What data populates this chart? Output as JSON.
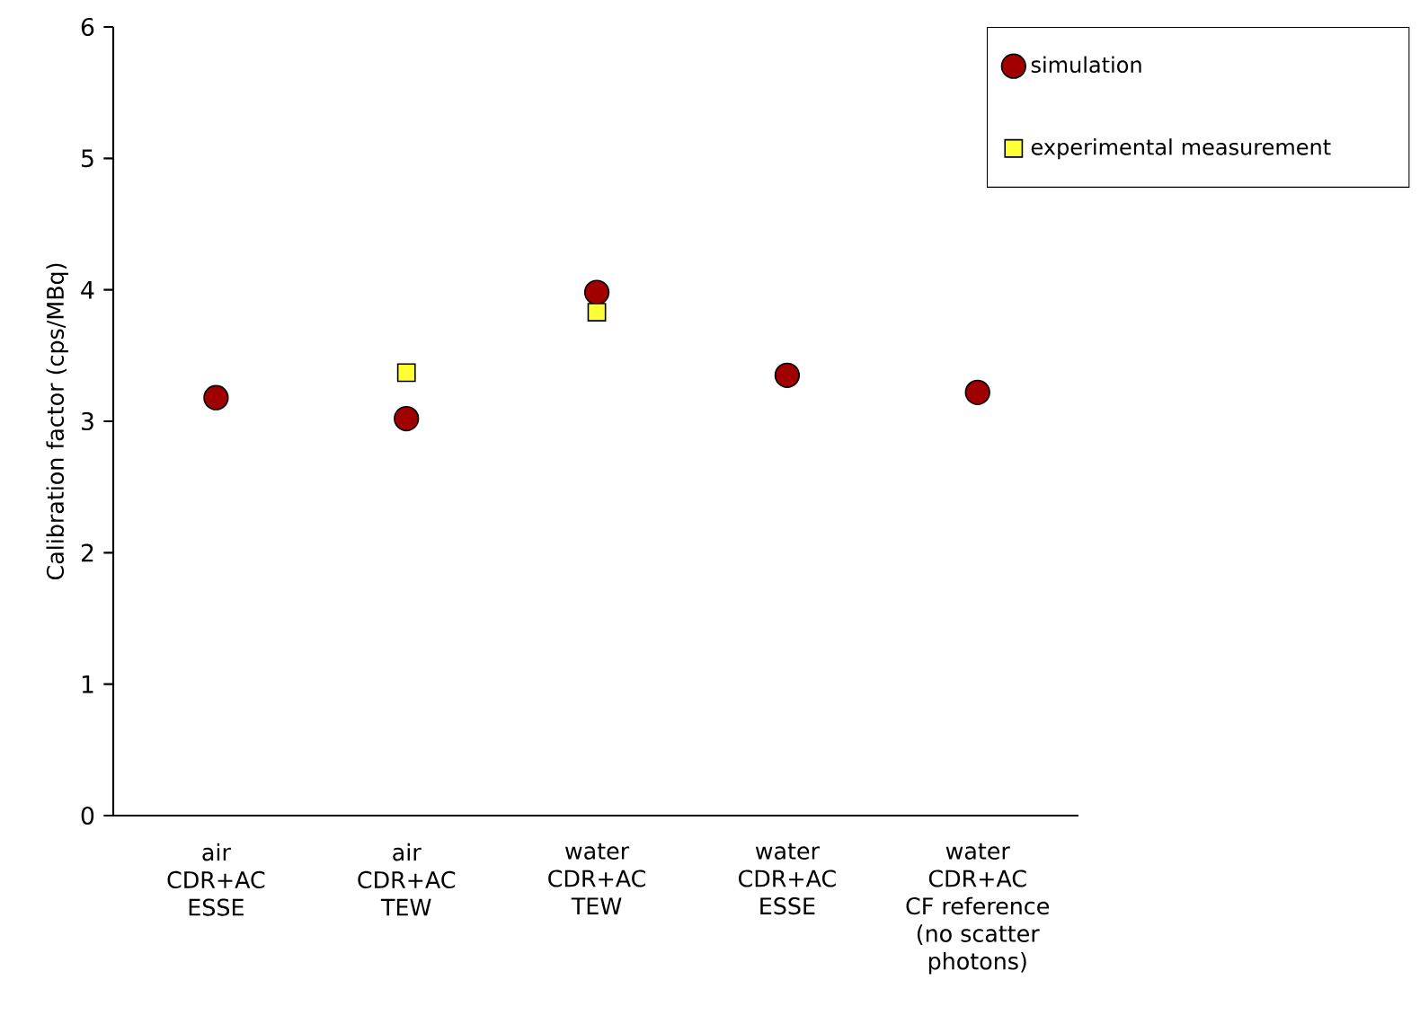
{
  "chart_data": {
    "type": "scatter",
    "ylabel": "Calibration factor (cps/MBq)",
    "categories": [
      "air\nCDR+AC\nESSE",
      "air\nCDR+AC\nTEW",
      "water\nCDR+AC\nTEW",
      "water\nCDR+AC\nESSE",
      "water\nCDR+AC\nCF reference\n(no scatter\nphotons)"
    ],
    "series": [
      {
        "name": "simulation",
        "color": "#a00000",
        "marker": "circle",
        "values": [
          3.18,
          3.02,
          3.98,
          3.35,
          3.22
        ]
      },
      {
        "name": "experimental measurement",
        "color": "#ffff33",
        "marker": "square",
        "values": [
          null,
          3.37,
          3.83,
          null,
          null
        ]
      }
    ],
    "ylim": [
      0,
      6
    ],
    "yticks": [
      0,
      1,
      2,
      3,
      4,
      5,
      6
    ],
    "grid": false,
    "legend": "top right"
  }
}
